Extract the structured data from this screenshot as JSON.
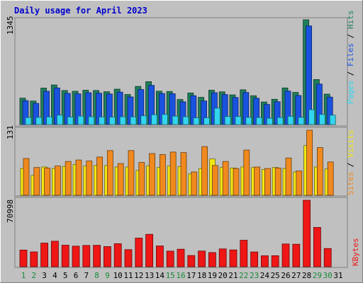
{
  "chart_data": {
    "title": "Daily usage for April 2023",
    "type": "bar",
    "x": [
      "1",
      "2",
      "3",
      "4",
      "5",
      "6",
      "7",
      "8",
      "9",
      "10",
      "11",
      "12",
      "13",
      "14",
      "15",
      "16",
      "17",
      "18",
      "19",
      "20",
      "21",
      "22",
      "23",
      "24",
      "25",
      "26",
      "27",
      "28",
      "29",
      "30",
      "31"
    ],
    "weekend_days": [
      "1",
      "2",
      "8",
      "9",
      "15",
      "16",
      "22",
      "23",
      "29",
      "30"
    ],
    "panels": [
      {
        "name": "hits-files-pages",
        "ymax_label": "1345",
        "ylim": [
          0,
          1345
        ],
        "right_label_parts": [
          "Pages",
          "Files",
          "Hits"
        ],
        "series": [
          {
            "name": "Hits",
            "color": "#1f7f5a",
            "values": [
              339,
              302,
              468,
              508,
              437,
              427,
              441,
              437,
              422,
              454,
              386,
              490,
              551,
              428,
              424,
              322,
              405,
              349,
              441,
              420,
              381,
              446,
              370,
              289,
              324,
              470,
              413,
              1345,
              578,
              391,
              0
            ]
          },
          {
            "name": "Files",
            "color": "#1a52e0",
            "values": [
              307,
              272,
              427,
              470,
              400,
              394,
              408,
              403,
              393,
              416,
              354,
              450,
              503,
              398,
              395,
              292,
              370,
              303,
              409,
              384,
              347,
              412,
              338,
              258,
              293,
              430,
              373,
              1266,
              520,
              353,
              0
            ]
          },
          {
            "name": "Pages",
            "color": "#33d5ef",
            "values": [
              90,
              92,
              98,
              120,
              96,
              108,
              100,
              97,
              96,
              100,
              98,
              112,
              126,
              130,
              107,
              100,
              85,
              86,
              210,
              103,
              103,
              92,
              90,
              80,
              90,
              105,
              92,
              190,
              130,
              120,
              0
            ]
          }
        ]
      },
      {
        "name": "visits-sites",
        "ymax_label": "131",
        "ylim": [
          0,
          131
        ],
        "right_label_parts": [
          "Sites",
          "Visits"
        ],
        "series": [
          {
            "name": "Visits",
            "color": "#f2e614",
            "values": [
              54,
              40,
              57,
              54,
              58,
              62,
              59,
              60,
              60,
              57,
              57,
              50,
              59,
              56,
              59,
              58,
              43,
              54,
              73,
              56,
              55,
              57,
              56,
              52,
              56,
              54,
              47,
              100,
              57,
              53,
              0
            ]
          },
          {
            "name": "Sites",
            "color": "#f0891e",
            "values": [
              74,
              56,
              55,
              59,
              68,
              71,
              69,
              77,
              90,
              64,
              90,
              66,
              84,
              82,
              87,
              86,
              47,
              98,
              60,
              68,
              54,
              91,
              57,
              54,
              55,
              75,
              49,
              131,
              96,
              67,
              0
            ]
          }
        ]
      },
      {
        "name": "kbytes",
        "ymax_label": "70998",
        "ylim": [
          0,
          70998
        ],
        "right_label_parts": [
          "KBytes"
        ],
        "series": [
          {
            "name": "KBytes",
            "color": "#ef1616",
            "values": [
              17860,
              15850,
              25200,
              27300,
              23000,
              22000,
              22700,
              22900,
              21500,
              24600,
              18300,
              30600,
              34600,
              22200,
              16700,
              18700,
              12000,
              16800,
              15200,
              19000,
              18000,
              28300,
              15800,
              11700,
              11800,
              24300,
              24000,
              70998,
              42000,
              19500,
              0
            ]
          }
        ]
      }
    ]
  }
}
